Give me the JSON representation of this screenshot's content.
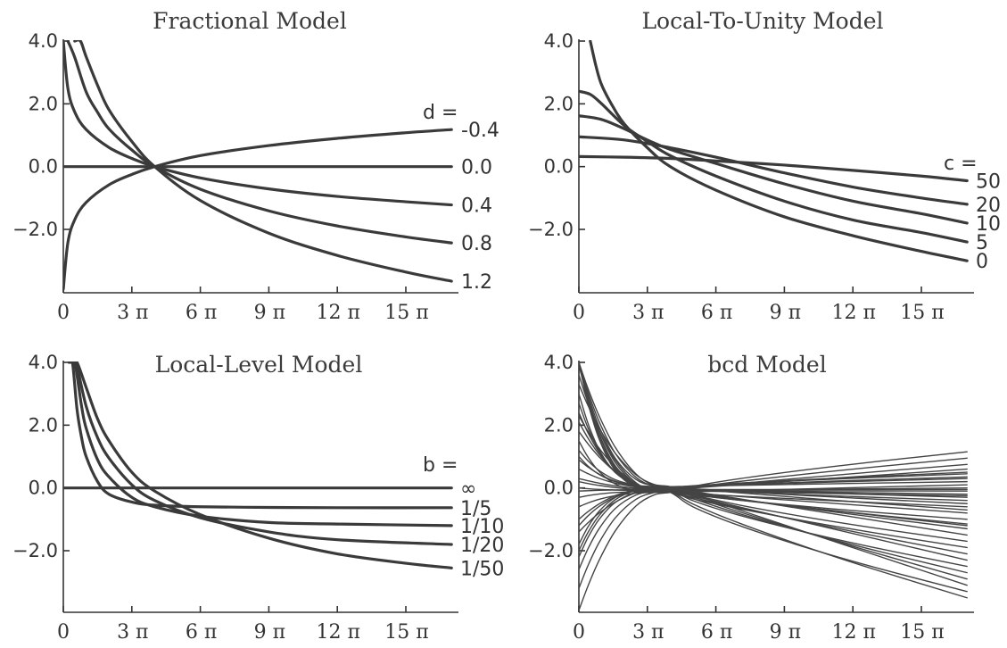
{
  "chart_data": [
    {
      "type": "line",
      "title": "Fractional Model",
      "parameter_label": "d =",
      "xlim": [
        0,
        17
      ],
      "ylim": [
        -3.9,
        4.0
      ],
      "xticks": {
        "values": [
          0,
          3,
          6,
          9,
          12,
          15
        ],
        "labels": [
          "0",
          "3 π",
          "6 π",
          "9 π",
          "12 π",
          "15 π"
        ]
      },
      "yticks": {
        "values": [
          4.0,
          2.0,
          0.0,
          -2.0
        ],
        "labels": [
          "4.0",
          "2.0",
          "0.0",
          "−2.0"
        ]
      },
      "line_color": "#3a3a3a",
      "series": [
        {
          "name": "-0.4",
          "x": [
            0,
            0.2,
            0.5,
            1,
            2,
            3,
            4,
            6,
            9,
            12,
            15,
            17
          ],
          "y": [
            -3.9,
            -2.42,
            -1.69,
            -1.14,
            -0.58,
            -0.25,
            0.0,
            0.35,
            0.67,
            0.9,
            1.08,
            1.18
          ]
        },
        {
          "name": "0.0",
          "x": [
            0,
            17
          ],
          "y": [
            0.0,
            0.0
          ]
        },
        {
          "name": "0.4",
          "x": [
            0,
            0.2,
            0.5,
            1,
            2,
            3,
            4,
            6,
            9,
            12,
            15,
            17
          ],
          "y": [
            4.0,
            2.49,
            1.74,
            1.18,
            0.61,
            0.26,
            0.0,
            -0.36,
            -0.71,
            -0.95,
            -1.12,
            -1.22
          ]
        },
        {
          "name": "0.8",
          "x": [
            0.2,
            0.5,
            1,
            1.5,
            2,
            3,
            4,
            6,
            9,
            12,
            15,
            17
          ],
          "y": [
            4.0,
            3.48,
            2.38,
            1.73,
            1.2,
            0.53,
            0.0,
            -0.72,
            -1.41,
            -1.89,
            -2.24,
            -2.43
          ]
        },
        {
          "name": "1.2",
          "x": [
            0.5,
            0.75,
            1,
            1.5,
            2,
            3,
            4,
            6,
            9,
            12,
            15,
            17
          ],
          "y": [
            4.0,
            4.0,
            3.5,
            2.59,
            1.81,
            0.8,
            0.0,
            -1.08,
            -2.12,
            -2.83,
            -3.36,
            -3.65
          ]
        }
      ]
    },
    {
      "type": "line",
      "title": "Local-To-Unity Model",
      "parameter_label": "c =",
      "xlim": [
        0,
        17
      ],
      "ylim": [
        -3.9,
        4.0
      ],
      "xticks": {
        "values": [
          0,
          3,
          6,
          9,
          12,
          15
        ],
        "labels": [
          "0",
          "3 π",
          "6 π",
          "9 π",
          "12 π",
          "15 π"
        ]
      },
      "yticks": {
        "values": [
          4.0,
          2.0,
          0.0,
          -2.0
        ],
        "labels": [
          "4.0",
          "2.0",
          "0.0",
          "−2.0"
        ]
      },
      "line_color": "#3a3a3a",
      "series": [
        {
          "name": "50",
          "x": [
            0,
            2,
            4,
            6,
            9,
            12,
            15,
            17
          ],
          "y": [
            0.32,
            0.3,
            0.26,
            0.18,
            0.05,
            -0.12,
            -0.3,
            -0.45
          ]
        },
        {
          "name": "20",
          "x": [
            0,
            2,
            4,
            6,
            9,
            12,
            15,
            17
          ],
          "y": [
            0.95,
            0.85,
            0.6,
            0.3,
            -0.2,
            -0.65,
            -1.0,
            -1.2
          ]
        },
        {
          "name": "10",
          "x": [
            0,
            1,
            2,
            3,
            4,
            6,
            9,
            12,
            15,
            17
          ],
          "y": [
            1.62,
            1.5,
            1.2,
            0.85,
            0.55,
            0.1,
            -0.55,
            -1.1,
            -1.5,
            -1.8
          ]
        },
        {
          "name": "5",
          "x": [
            0,
            0.5,
            1,
            2,
            3,
            4,
            6,
            9,
            12,
            15,
            17
          ],
          "y": [
            2.4,
            2.3,
            2.0,
            1.3,
            0.8,
            0.35,
            -0.3,
            -1.1,
            -1.7,
            -2.1,
            -2.4
          ]
        },
        {
          "name": "0",
          "x": [
            0.5,
            0.75,
            1,
            1.5,
            2,
            3,
            4,
            6,
            9,
            12,
            15,
            17
          ],
          "y": [
            4.0,
            3.2,
            2.6,
            1.9,
            1.35,
            0.6,
            0.0,
            -0.75,
            -1.6,
            -2.2,
            -2.7,
            -3.0
          ]
        }
      ]
    },
    {
      "type": "line",
      "title": "Local-Level Model",
      "parameter_label": "b =",
      "xlim": [
        0,
        17
      ],
      "ylim": [
        -3.9,
        4.0
      ],
      "xticks": {
        "values": [
          0,
          3,
          6,
          9,
          12,
          15
        ],
        "labels": [
          "0",
          "3 π",
          "6 π",
          "9 π",
          "12 π",
          "15 π"
        ]
      },
      "yticks": {
        "values": [
          4.0,
          2.0,
          0.0,
          -2.0
        ],
        "labels": [
          "4.0",
          "2.0",
          "0.0",
          "−2.0"
        ]
      },
      "line_color": "#3a3a3a",
      "series": [
        {
          "name": "∞",
          "x": [
            0,
            17
          ],
          "y": [
            0.0,
            0.0
          ]
        },
        {
          "name": "1/5",
          "x": [
            0.25,
            0.4,
            0.6,
            0.8,
            1,
            1.5,
            2,
            3,
            4,
            6,
            9,
            12,
            17
          ],
          "y": [
            4.0,
            4.0,
            2.5,
            1.6,
            1.0,
            0.2,
            -0.2,
            -0.45,
            -0.55,
            -0.6,
            -0.62,
            -0.63,
            -0.63
          ]
        },
        {
          "name": "1/10",
          "x": [
            0.3,
            0.5,
            0.8,
            1,
            1.5,
            2,
            3,
            4,
            6,
            9,
            12,
            17
          ],
          "y": [
            4.0,
            4.0,
            2.6,
            1.9,
            0.9,
            0.35,
            -0.3,
            -0.6,
            -0.9,
            -1.1,
            -1.15,
            -1.2
          ]
        },
        {
          "name": "1/20",
          "x": [
            0.35,
            0.55,
            1,
            1.5,
            2,
            3,
            4,
            6,
            9,
            12,
            17
          ],
          "y": [
            4.0,
            4.0,
            2.6,
            1.6,
            0.95,
            0.1,
            -0.4,
            -0.95,
            -1.4,
            -1.65,
            -1.8
          ]
        },
        {
          "name": "1/50",
          "x": [
            0.4,
            0.6,
            1,
            1.5,
            2,
            3,
            4,
            6,
            9,
            12,
            15,
            17
          ],
          "y": [
            4.0,
            4.0,
            3.2,
            2.2,
            1.5,
            0.5,
            -0.1,
            -0.85,
            -1.6,
            -2.1,
            -2.4,
            -2.55
          ]
        }
      ]
    },
    {
      "type": "line",
      "title": "bcd Model",
      "xlim": [
        0,
        17
      ],
      "ylim": [
        -3.9,
        4.0
      ],
      "xticks": {
        "values": [
          0,
          3,
          6,
          9,
          12,
          15
        ],
        "labels": [
          "0",
          "3 π",
          "6 π",
          "9 π",
          "12 π",
          "15 π"
        ]
      },
      "yticks": {
        "values": [
          4.0,
          2.0,
          0.0,
          -2.0
        ],
        "labels": [
          "4.0",
          "2.0",
          "0.0",
          "−2.0"
        ]
      },
      "line_color": "#444444",
      "curve_family": {
        "count": 36,
        "crossing_x": 4,
        "end_y_at_17": [
          1.15,
          0.95,
          0.75,
          0.6,
          0.45,
          0.3,
          0.2,
          0.1,
          0.0,
          -0.1,
          -0.2,
          -0.3,
          -0.4,
          -0.5,
          -0.6,
          -0.8,
          -1.0,
          -1.15,
          -1.3,
          -1.5,
          -1.7,
          -1.9,
          -2.1,
          -2.3,
          -2.5,
          -2.7,
          -2.9,
          -3.1,
          -3.3,
          -3.5,
          -0.25,
          -0.05,
          0.35,
          0.5,
          -0.7,
          -1.2
        ],
        "start_y_at_0": [
          -3.9,
          -3.2,
          -2.6,
          -2.2,
          -1.8,
          -1.4,
          -1.0,
          -0.6,
          -0.3,
          0.0,
          0.3,
          0.6,
          0.9,
          1.2,
          1.5,
          1.8,
          2.1,
          2.4,
          2.7,
          3.0,
          3.3,
          3.6,
          3.9,
          4.0,
          4.0,
          4.0,
          4.0,
          4.0,
          4.0,
          4.0,
          0.2,
          -0.1,
          -1.2,
          -2.0,
          1.0,
          2.3
        ]
      }
    }
  ]
}
